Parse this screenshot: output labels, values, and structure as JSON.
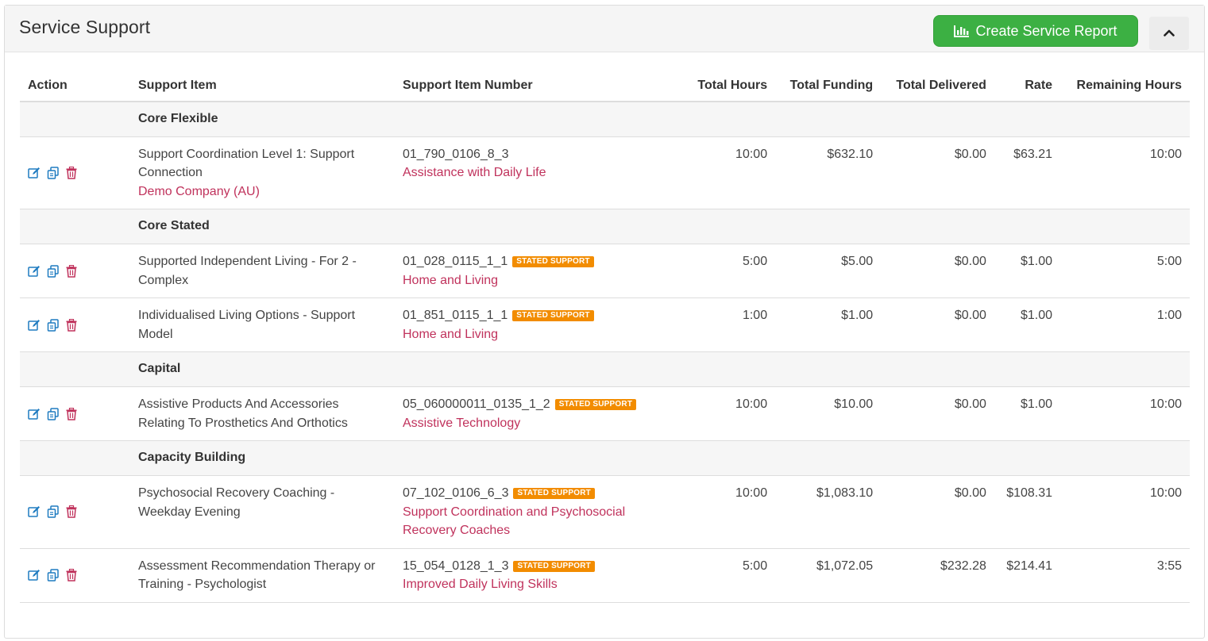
{
  "panel": {
    "title": "Service Support",
    "create_report_label": "Create Service Report",
    "create_report_icon": "bar-chart-icon",
    "collapse_icon": "chevron-up-icon"
  },
  "table": {
    "headers": {
      "action": "Action",
      "support_item": "Support Item",
      "support_item_number": "Support Item Number",
      "total_hours": "Total Hours",
      "total_funding": "Total Funding",
      "total_delivered": "Total Delivered",
      "rate": "Rate",
      "remaining_hours": "Remaining Hours"
    },
    "badge_label": "STATED SUPPORT",
    "groups": [
      {
        "name": "Core Flexible",
        "rows": [
          {
            "support_item": "Support Coordination Level 1: Support Connection",
            "provider": "Demo Company (AU)",
            "number": "01_790_0106_8_3",
            "stated": false,
            "category": "Assistance with Daily Life",
            "total_hours": "10:00",
            "total_funding": "$632.10",
            "total_delivered": "$0.00",
            "rate": "$63.21",
            "remaining_hours": "10:00"
          }
        ]
      },
      {
        "name": "Core Stated",
        "rows": [
          {
            "support_item": "Supported Independent Living - For 2 - Complex",
            "provider": "",
            "number": "01_028_0115_1_1",
            "stated": true,
            "category": "Home and Living",
            "total_hours": "5:00",
            "total_funding": "$5.00",
            "total_delivered": "$0.00",
            "rate": "$1.00",
            "remaining_hours": "5:00"
          },
          {
            "support_item": "Individualised Living Options - Support Model",
            "provider": "",
            "number": "01_851_0115_1_1",
            "stated": true,
            "category": "Home and Living",
            "total_hours": "1:00",
            "total_funding": "$1.00",
            "total_delivered": "$0.00",
            "rate": "$1.00",
            "remaining_hours": "1:00"
          }
        ]
      },
      {
        "name": "Capital",
        "rows": [
          {
            "support_item": "Assistive Products And Accessories Relating To Prosthetics And Orthotics",
            "provider": "",
            "number": "05_060000011_0135_1_2",
            "stated": true,
            "category": "Assistive Technology",
            "total_hours": "10:00",
            "total_funding": "$10.00",
            "total_delivered": "$0.00",
            "rate": "$1.00",
            "remaining_hours": "10:00"
          }
        ]
      },
      {
        "name": "Capacity Building",
        "rows": [
          {
            "support_item": "Psychosocial Recovery Coaching - Weekday Evening",
            "provider": "",
            "number": "07_102_0106_6_3",
            "stated": true,
            "category": "Support Coordination and Psychosocial Recovery Coaches",
            "total_hours": "10:00",
            "total_funding": "$1,083.10",
            "total_delivered": "$0.00",
            "rate": "$108.31",
            "remaining_hours": "10:00"
          },
          {
            "support_item": "Assessment Recommendation Therapy or Training - Psychologist",
            "provider": "",
            "number": "15_054_0128_1_3",
            "stated": true,
            "category": "Improved Daily Living Skills",
            "total_hours": "5:00",
            "total_funding": "$1,072.05",
            "total_delivered": "$232.28",
            "rate": "$214.41",
            "remaining_hours": "3:55"
          }
        ]
      }
    ]
  },
  "colors": {
    "accent_green": "#3cb043",
    "link_red": "#c0325c",
    "badge_orange": "#f28c00",
    "edit_blue": "#1f7bc0",
    "delete_red": "#c0325c"
  }
}
